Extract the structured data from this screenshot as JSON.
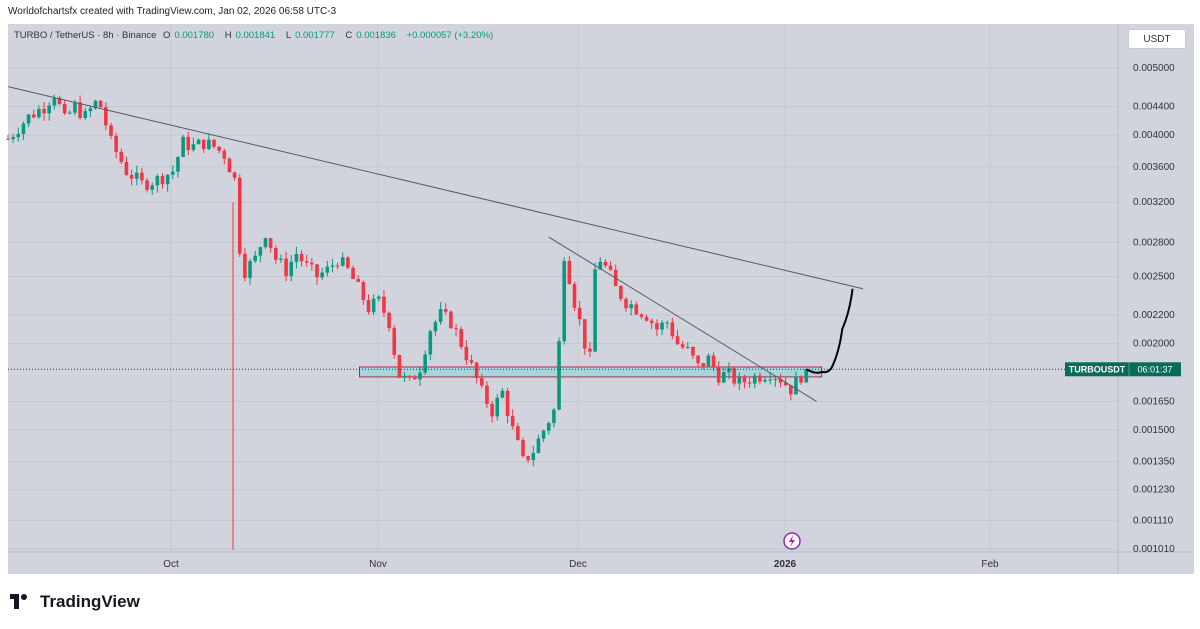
{
  "credit": "Worldofchartsfx created with TradingView.com, Jan 02, 2026 06:58 UTC-3",
  "legend": {
    "symbol": "TURBO / TetherUS · 8h · Binance",
    "o_label": "O",
    "o": "0.001780",
    "h_label": "H",
    "h": "0.001841",
    "l_label": "L",
    "l": "0.001777",
    "c_label": "C",
    "c": "0.001836",
    "change": "+0.000057 (+3.20%)"
  },
  "currency_button": "USDT",
  "price_tag": {
    "symbol": "TURBOUSDT",
    "countdown": "06:01:37"
  },
  "logo_text": "TradingView",
  "event_icon": "lightning-icon",
  "colors": {
    "up": "#089981",
    "down": "#f23645",
    "background": "#d1d4dc",
    "zone": "#9ed6df",
    "zone_border": "#b2283c",
    "tag": "#0b6b5a"
  },
  "chart_data": {
    "type": "candlestick",
    "yticks": [
      "0.005000",
      "0.004400",
      "0.004000",
      "0.003600",
      "0.003200",
      "0.002800",
      "0.002500",
      "0.002200",
      "0.002000",
      "0.001650",
      "0.001500",
      "0.001350",
      "0.001230",
      "0.001110",
      "0.001010"
    ],
    "xticks": [
      "Oct",
      "Nov",
      "Dec",
      "2026",
      "Feb"
    ],
    "last_price": 0.001836,
    "close_path": [
      [
        0,
        0.00395
      ],
      [
        4,
        0.00425
      ],
      [
        7,
        0.0044
      ],
      [
        9,
        0.0046
      ],
      [
        11,
        0.0042
      ],
      [
        13,
        0.0044
      ],
      [
        15,
        0.00425
      ],
      [
        17,
        0.00445
      ],
      [
        18,
        0.0044
      ],
      [
        20,
        0.0039
      ],
      [
        23,
        0.00355
      ],
      [
        26,
        0.0034
      ],
      [
        29,
        0.00345
      ],
      [
        32,
        0.00355
      ],
      [
        34,
        0.0039
      ],
      [
        36,
        0.00385
      ],
      [
        38,
        0.0039
      ],
      [
        40,
        0.00385
      ],
      [
        42,
        0.00375
      ],
      [
        44,
        0.00345
      ],
      [
        45,
        0.00275
      ],
      [
        46,
        0.00255
      ],
      [
        48,
        0.00265
      ],
      [
        50,
        0.0029
      ],
      [
        52,
        0.00265
      ],
      [
        54,
        0.00255
      ],
      [
        56,
        0.0027
      ],
      [
        58,
        0.00258
      ],
      [
        60,
        0.0025
      ],
      [
        62,
        0.00255
      ],
      [
        64,
        0.00265
      ],
      [
        66,
        0.00255
      ],
      [
        68,
        0.0024
      ],
      [
        70,
        0.00225
      ],
      [
        72,
        0.0023
      ],
      [
        74,
        0.00215
      ],
      [
        75,
        0.00195
      ],
      [
        76,
        0.0018
      ],
      [
        78,
        0.00175
      ],
      [
        80,
        0.00185
      ],
      [
        82,
        0.0021
      ],
      [
        84,
        0.0022
      ],
      [
        86,
        0.00215
      ],
      [
        88,
        0.002
      ],
      [
        90,
        0.00185
      ],
      [
        92,
        0.0017
      ],
      [
        94,
        0.0016
      ],
      [
        96,
        0.0017
      ],
      [
        98,
        0.0015
      ],
      [
        100,
        0.00135
      ],
      [
        102,
        0.0014
      ],
      [
        104,
        0.0015
      ],
      [
        106,
        0.0016
      ],
      [
        107,
        0.002
      ],
      [
        108,
        0.0027
      ],
      [
        109,
        0.0025
      ],
      [
        110,
        0.0023
      ],
      [
        112,
        0.002
      ],
      [
        113,
        0.0019
      ],
      [
        114,
        0.00255
      ],
      [
        115,
        0.00265
      ],
      [
        117,
        0.0025
      ],
      [
        118,
        0.0024
      ],
      [
        120,
        0.0023
      ],
      [
        122,
        0.00225
      ],
      [
        124,
        0.0022
      ],
      [
        126,
        0.0021
      ],
      [
        128,
        0.00215
      ],
      [
        130,
        0.002
      ],
      [
        132,
        0.00195
      ],
      [
        134,
        0.00185
      ],
      [
        136,
        0.0019
      ],
      [
        138,
        0.0018
      ],
      [
        140,
        0.0018
      ],
      [
        142,
        0.00175
      ],
      [
        144,
        0.00178
      ],
      [
        146,
        0.0018
      ],
      [
        148,
        0.00182
      ],
      [
        150,
        0.00178
      ],
      [
        152,
        0.00172
      ],
      [
        154,
        0.0018
      ],
      [
        155,
        0.001836
      ]
    ],
    "drawn_projection": [
      [
        155,
        0.001836
      ],
      [
        158,
        0.00182
      ],
      [
        160,
        0.00185
      ],
      [
        162,
        0.0021
      ],
      [
        164,
        0.0024
      ]
    ],
    "support_zone": {
      "start": 70,
      "end": 158,
      "top": 0.00185,
      "bottom": 0.00179
    },
    "resistance_lines": [
      {
        "from": [
          0,
          0.0047
        ],
        "to": [
          166,
          0.0024
        ]
      },
      {
        "from": [
          105,
          0.00285
        ],
        "to": [
          157,
          0.00165
        ]
      }
    ]
  }
}
